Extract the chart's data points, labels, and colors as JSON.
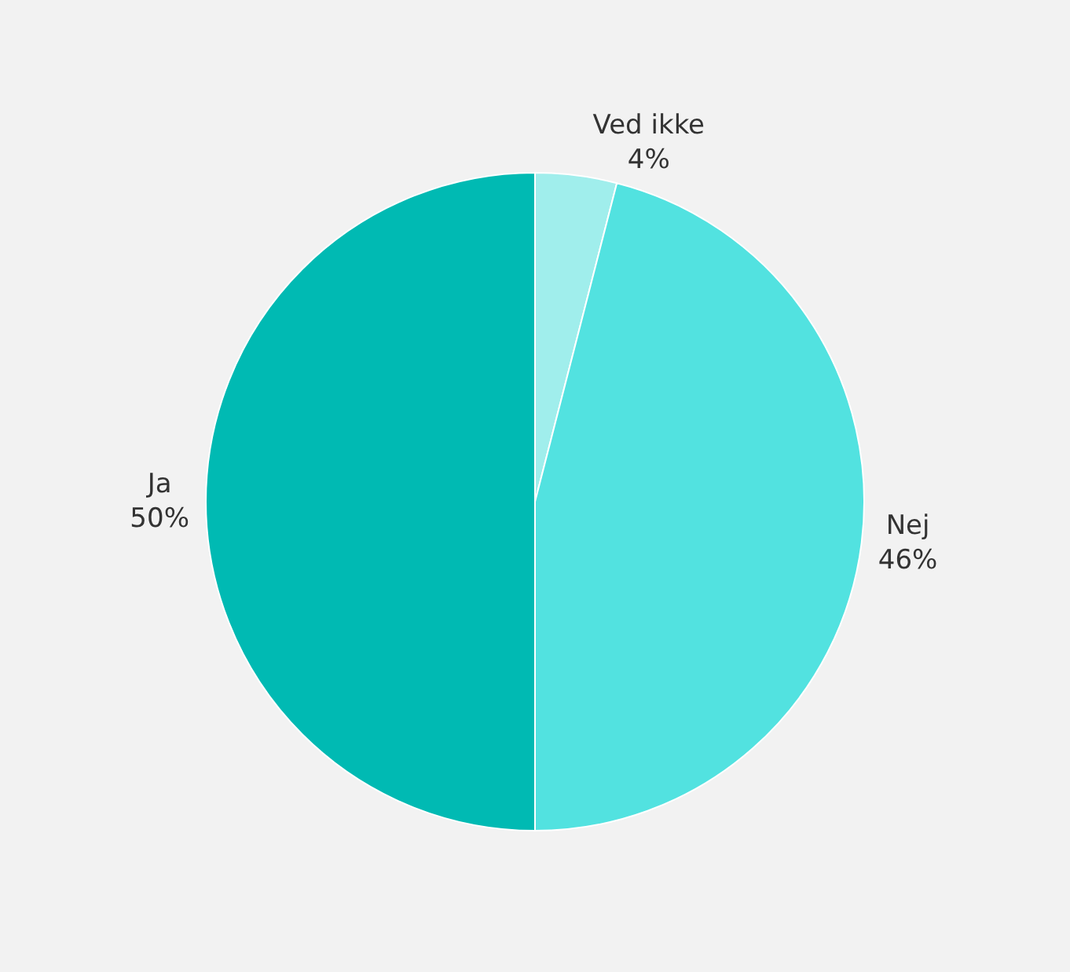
{
  "chart_data": {
    "type": "pie",
    "categories": [
      "Ved ikke",
      "Nej",
      "Ja"
    ],
    "values": [
      4,
      46,
      50
    ],
    "value_labels": [
      "4%",
      "46%",
      "50%"
    ],
    "colors": [
      "#a0eeec",
      "#52e2e0",
      "#00bab3"
    ],
    "legend": false
  }
}
